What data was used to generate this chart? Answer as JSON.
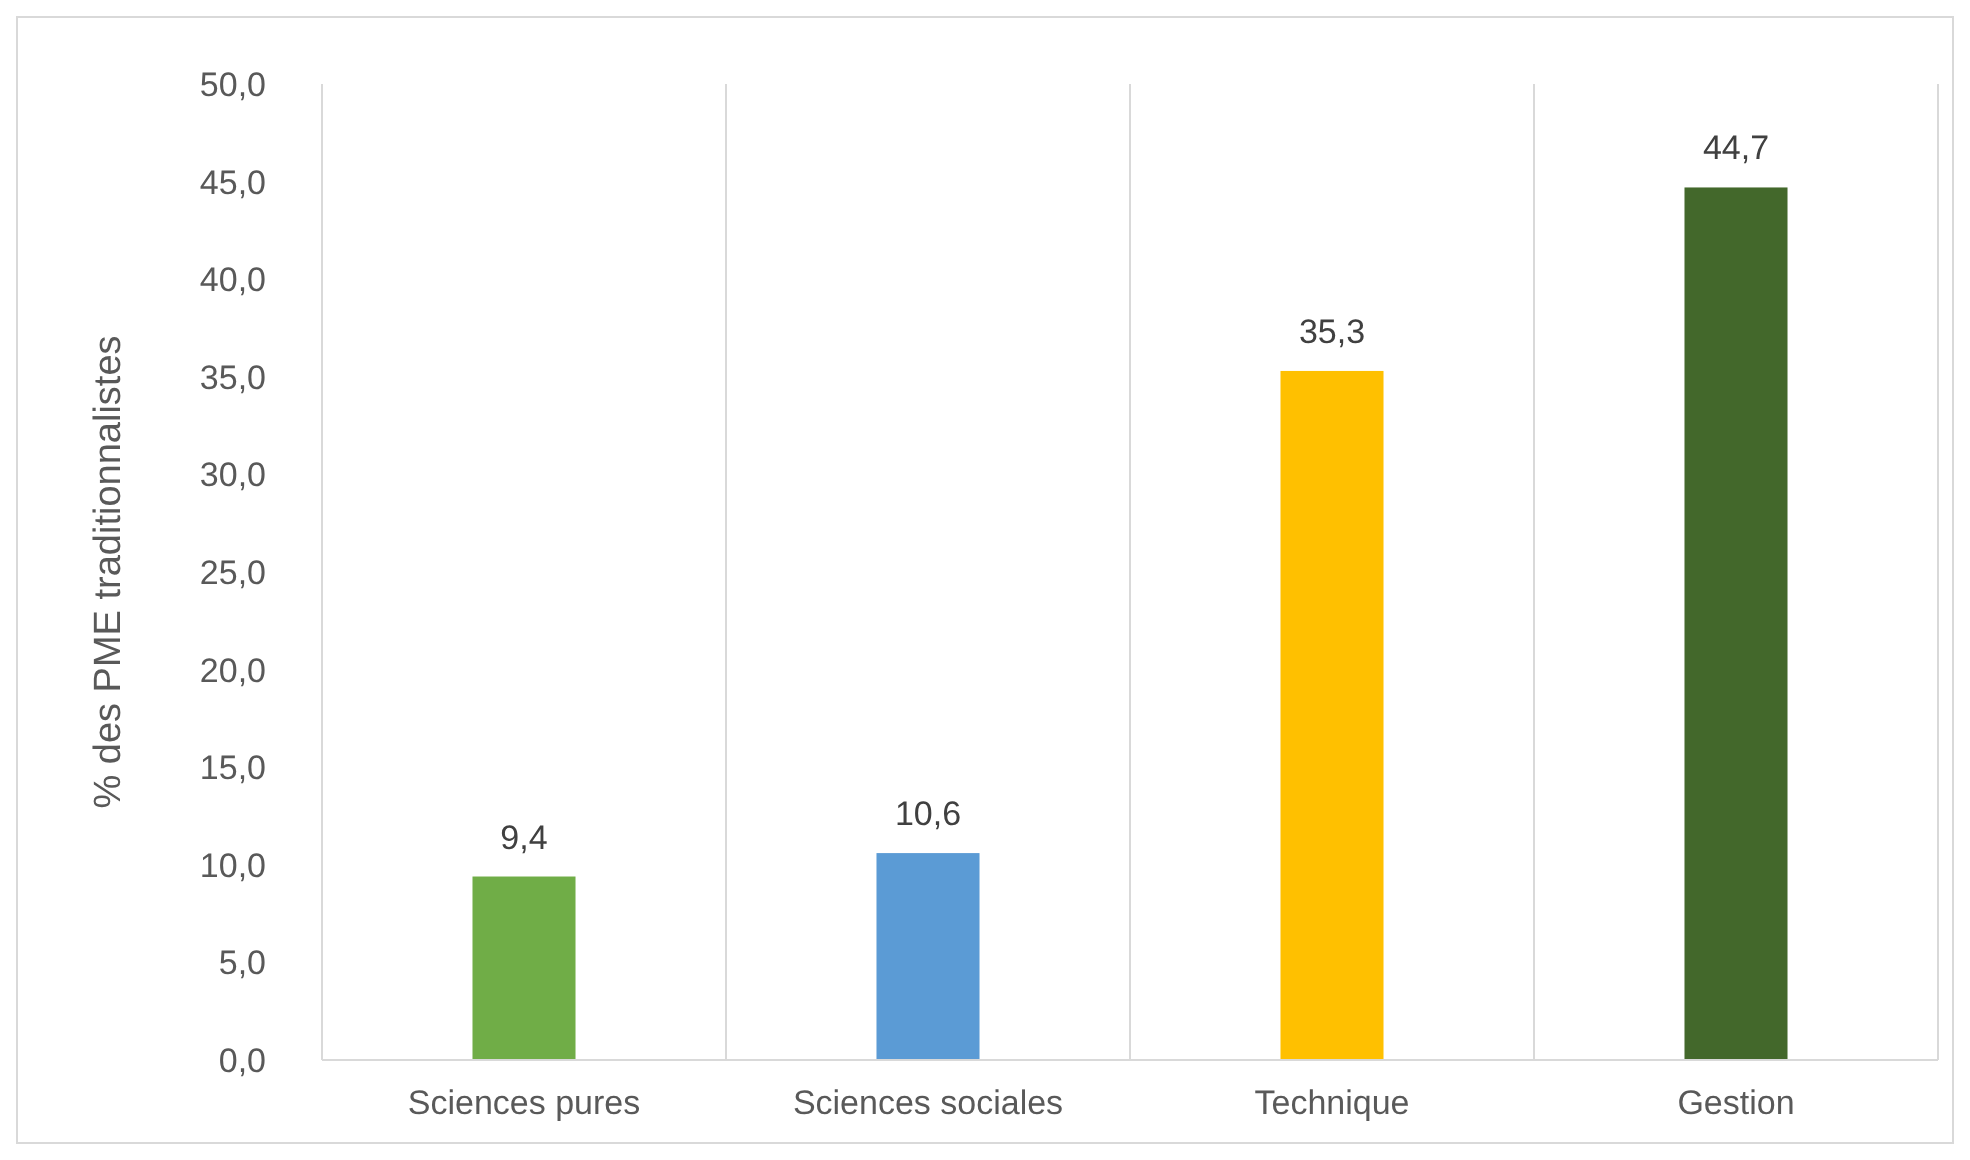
{
  "chart_data": {
    "type": "bar",
    "ylabel": "% des PME traditionnalistes",
    "categories": [
      "Sciences pures",
      "Sciences sociales",
      "Technique",
      "Gestion"
    ],
    "values": [
      9.4,
      10.6,
      35.3,
      44.7
    ],
    "colors": [
      "#70ad47",
      "#5b9bd5",
      "#ffc000",
      "#43682b"
    ],
    "value_labels": [
      "9,4",
      "10,6",
      "35,3",
      "44,7"
    ],
    "ylim": [
      0,
      50
    ],
    "yticks": [
      {
        "value": 0,
        "label": "0,0"
      },
      {
        "value": 5,
        "label": "5,0"
      },
      {
        "value": 10,
        "label": "10,0"
      },
      {
        "value": 15,
        "label": "15,0"
      },
      {
        "value": 20,
        "label": "20,0"
      },
      {
        "value": 25,
        "label": "25,0"
      },
      {
        "value": 30,
        "label": "30,0"
      },
      {
        "value": 35,
        "label": "35,0"
      },
      {
        "value": 40,
        "label": "40,0"
      },
      {
        "value": 45,
        "label": "45,0"
      },
      {
        "value": 50,
        "label": "50,0"
      }
    ],
    "grid": "x"
  }
}
